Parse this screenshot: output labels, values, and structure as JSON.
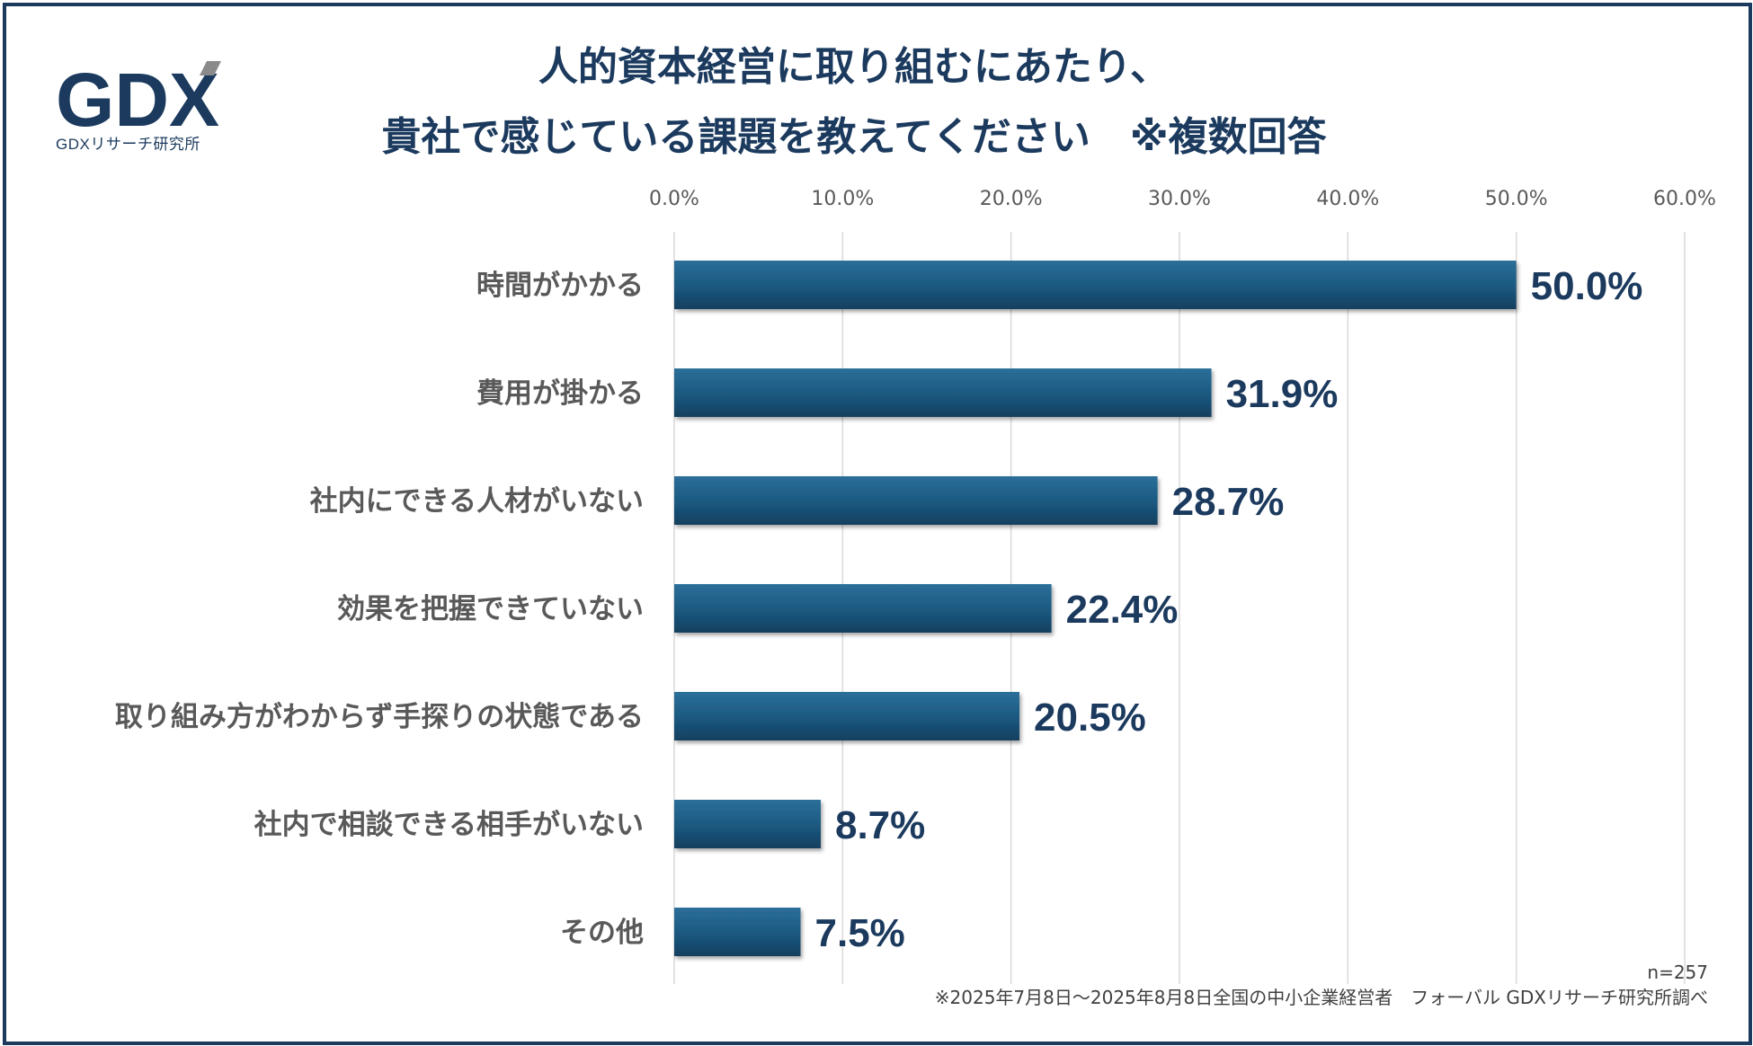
{
  "logo": {
    "mark": "GDX",
    "caption": "GDXリサーチ研究所"
  },
  "title": {
    "line1": "人的資本経営に取り組むにあたり、",
    "line2": "貴社で感じている課題を教えてください　※複数回答"
  },
  "colors": {
    "bar": "#1c5a82",
    "frame": "#1b3a5e",
    "text": "#1b3a5e",
    "grid": "#d9d9d9"
  },
  "chart_data": {
    "type": "bar",
    "orientation": "horizontal",
    "title": "人的資本経営に取り組むにあたり、貴社で感じている課題を教えてください　※複数回答",
    "categories": [
      "時間がかかる",
      "費用が掛かる",
      "社内にできる人材がいない",
      "効果を把握できていない",
      "取り組み方がわからず手探りの状態である",
      "社内で相談できる相手がいない",
      "その他"
    ],
    "values": [
      50.0,
      31.9,
      28.7,
      22.4,
      20.5,
      8.7,
      7.5
    ],
    "value_labels": [
      "50.0%",
      "31.9%",
      "28.7%",
      "22.4%",
      "20.5%",
      "8.7%",
      "7.5%"
    ],
    "xlim": [
      0,
      60
    ],
    "ticks": [
      0,
      10,
      20,
      30,
      40,
      50,
      60
    ],
    "tick_labels": [
      "0.0%",
      "10.0%",
      "20.0%",
      "30.0%",
      "40.0%",
      "50.0%",
      "60.0%"
    ],
    "axis_position": "top",
    "grid": true,
    "xlabel": "",
    "ylabel": ""
  },
  "notes": {
    "sample": "n=257",
    "source": "※2025年7月8日～2025年8月8日全国の中小企業経営者　フォーバル GDXリサーチ研究所調べ"
  }
}
